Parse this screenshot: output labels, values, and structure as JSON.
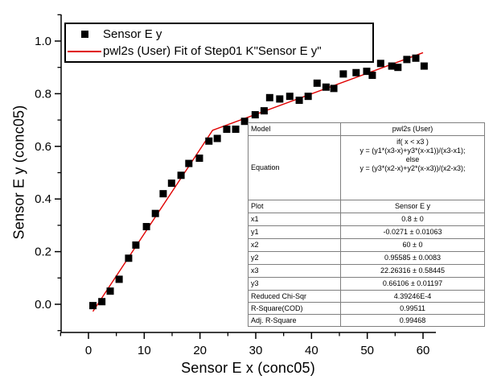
{
  "chart_data": {
    "type": "scatter",
    "title": "",
    "xlabel": "Sensor E x (conc05)",
    "ylabel": "Sensor E y (conc05)",
    "xlim": [
      -5,
      62.5
    ],
    "ylim": [
      -0.11,
      1.1
    ],
    "x_ticks": [
      0,
      10,
      20,
      30,
      40,
      50,
      60
    ],
    "x_minor_ticks": [
      -5,
      5,
      15,
      25,
      35,
      45,
      55
    ],
    "y_ticks": [
      0.0,
      0.2,
      0.4,
      0.6,
      0.8,
      1.0
    ],
    "y_minor_ticks": [
      -0.1,
      0.1,
      0.3,
      0.5,
      0.7,
      0.9,
      1.1
    ],
    "grid": false,
    "legend_position": "top-left",
    "series": [
      {
        "name": "Sensor E y",
        "type": "scatter",
        "marker": "square",
        "color": "#000000",
        "x": [
          0.8,
          2.4,
          3.9,
          5.5,
          7.2,
          8.5,
          10.4,
          12.0,
          13.4,
          14.9,
          16.6,
          18.0,
          19.9,
          21.6,
          23.1,
          24.8,
          26.4,
          28.0,
          29.9,
          31.5,
          32.5,
          34.3,
          36.1,
          37.8,
          39.4,
          41.0,
          42.6,
          44.0,
          45.7,
          48.0,
          49.9,
          50.9,
          52.4,
          54.4,
          55.5,
          57.1,
          58.7,
          60.2
        ],
        "y": [
          -0.005,
          0.01,
          0.05,
          0.095,
          0.175,
          0.225,
          0.295,
          0.345,
          0.42,
          0.46,
          0.49,
          0.535,
          0.555,
          0.62,
          0.63,
          0.665,
          0.665,
          0.695,
          0.72,
          0.735,
          0.785,
          0.78,
          0.79,
          0.775,
          0.79,
          0.84,
          0.825,
          0.82,
          0.875,
          0.88,
          0.885,
          0.87,
          0.915,
          0.905,
          0.9,
          0.93,
          0.935,
          0.905
        ]
      },
      {
        "name": "pwl2s (User) Fit of Step01 K\"Sensor E y\"",
        "type": "line",
        "color": "#e00000",
        "x": [
          0.8,
          22.26316,
          60
        ],
        "y": [
          -0.0271,
          0.66106,
          0.95585
        ]
      }
    ]
  },
  "stats_table": {
    "rows": [
      {
        "label": "Model",
        "value": "pwl2s (User)"
      },
      {
        "label": "Equation",
        "value": "if( x < x3 )\ny = (y1*(x3-x)+y3*(x-x1))/(x3-x1);\nelse\ny = (y3*(x2-x)+y2*(x-x3))/(x2-x3);"
      },
      {
        "label": "Plot",
        "value": "Sensor E y"
      },
      {
        "label": "x1",
        "value": "0.8 ± 0"
      },
      {
        "label": "y1",
        "value": "-0.0271 ± 0.01063"
      },
      {
        "label": "x2",
        "value": "60 ± 0"
      },
      {
        "label": "y2",
        "value": "0.95585 ± 0.0083"
      },
      {
        "label": "x3",
        "value": "22.26316 ± 0.58445"
      },
      {
        "label": "y3",
        "value": "0.66106 ± 0.01197"
      },
      {
        "label": "Reduced Chi-Sqr",
        "value": "4.39246E-4"
      },
      {
        "label": "R-Square(COD)",
        "value": "0.99511"
      },
      {
        "label": "Adj. R-Square",
        "value": "0.99468"
      }
    ]
  }
}
